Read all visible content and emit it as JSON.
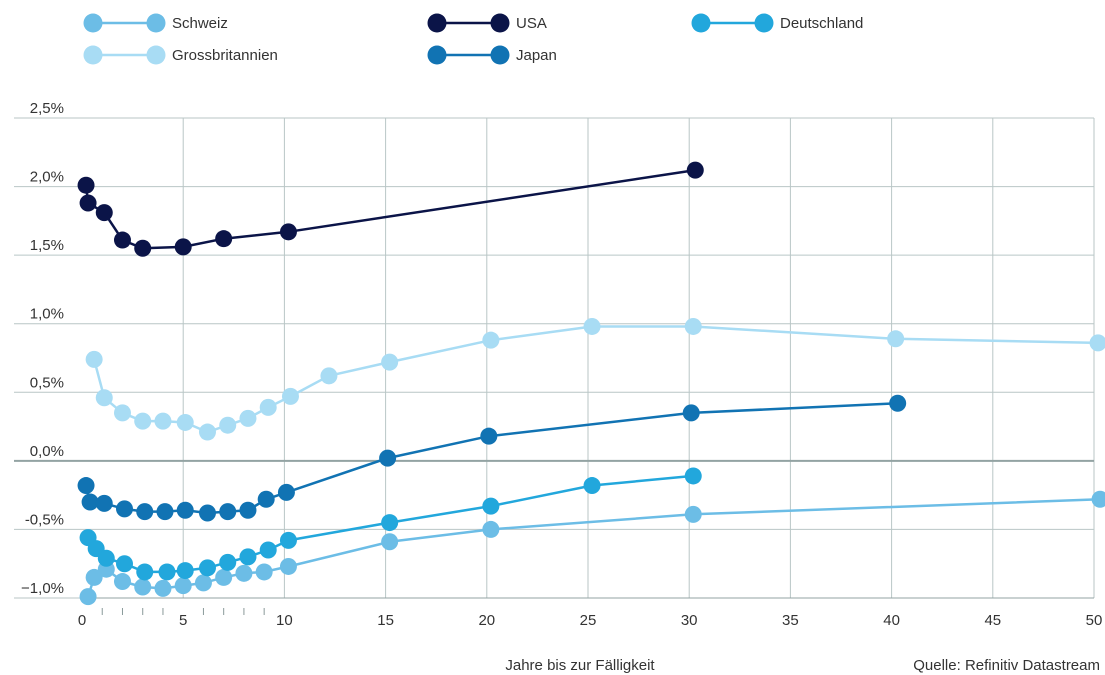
{
  "chart_data": {
    "type": "line",
    "xlabel": "Jahre bis zur Fälligkeit",
    "ylabel": "",
    "source": "Quelle: Refinitiv Datastream",
    "xlim": [
      0,
      50
    ],
    "ylim": [
      -1.0,
      2.5
    ],
    "x_ticks": [
      0,
      5,
      10,
      15,
      20,
      25,
      30,
      35,
      40,
      45,
      50
    ],
    "x_tick_labels": [
      "0",
      "5",
      "10",
      "15",
      "20",
      "25",
      "30",
      "35",
      "40",
      "45",
      "50"
    ],
    "y_ticks": [
      -1.0,
      -0.5,
      0.0,
      0.5,
      1.0,
      1.5,
      2.0,
      2.5
    ],
    "y_tick_labels": [
      "−1,0%",
      "-0,5%",
      "0,0%",
      "0,5%",
      "1,0%",
      "1,5%",
      "2,0%",
      "2,5%"
    ],
    "x_minor_ticks": [
      1,
      2,
      3,
      4,
      6,
      7,
      8,
      9
    ],
    "grid": true,
    "legend_position": "top",
    "series": [
      {
        "name": "Schweiz",
        "color": "#6cbde6",
        "points": [
          [
            0.3,
            -0.99
          ],
          [
            0.6,
            -0.85
          ],
          [
            1.2,
            -0.79
          ],
          [
            2,
            -0.88
          ],
          [
            3,
            -0.92
          ],
          [
            4,
            -0.93
          ],
          [
            5,
            -0.91
          ],
          [
            6,
            -0.89
          ],
          [
            7,
            -0.85
          ],
          [
            8,
            -0.82
          ],
          [
            9,
            -0.81
          ],
          [
            10.2,
            -0.77
          ],
          [
            15.2,
            -0.59
          ],
          [
            20.2,
            -0.5
          ],
          [
            30.2,
            -0.39
          ],
          [
            50.3,
            -0.28
          ]
        ]
      },
      {
        "name": "USA",
        "color": "#0b1448",
        "points": [
          [
            0.2,
            2.01
          ],
          [
            0.3,
            1.88
          ],
          [
            1.1,
            1.81
          ],
          [
            2,
            1.61
          ],
          [
            3,
            1.55
          ],
          [
            5,
            1.56
          ],
          [
            7,
            1.62
          ],
          [
            10.2,
            1.67
          ],
          [
            30.3,
            2.12
          ]
        ]
      },
      {
        "name": "Deutschland",
        "color": "#22a7dc",
        "points": [
          [
            0.3,
            -0.56
          ],
          [
            0.7,
            -0.64
          ],
          [
            1.2,
            -0.71
          ],
          [
            2.1,
            -0.75
          ],
          [
            3.1,
            -0.81
          ],
          [
            4.2,
            -0.81
          ],
          [
            5.1,
            -0.8
          ],
          [
            6.2,
            -0.78
          ],
          [
            7.2,
            -0.74
          ],
          [
            8.2,
            -0.7
          ],
          [
            9.2,
            -0.65
          ],
          [
            10.2,
            -0.58
          ],
          [
            15.2,
            -0.45
          ],
          [
            20.2,
            -0.33
          ],
          [
            25.2,
            -0.18
          ],
          [
            30.2,
            -0.11
          ]
        ]
      },
      {
        "name": "Grossbritannien",
        "color": "#a8dcf4",
        "points": [
          [
            0.6,
            0.74
          ],
          [
            1.1,
            0.46
          ],
          [
            2,
            0.35
          ],
          [
            3,
            0.29
          ],
          [
            4,
            0.29
          ],
          [
            5.1,
            0.28
          ],
          [
            6.2,
            0.21
          ],
          [
            7.2,
            0.26
          ],
          [
            8.2,
            0.31
          ],
          [
            9.2,
            0.39
          ],
          [
            10.3,
            0.47
          ],
          [
            12.2,
            0.62
          ],
          [
            15.2,
            0.72
          ],
          [
            20.2,
            0.88
          ],
          [
            25.2,
            0.98
          ],
          [
            30.2,
            0.98
          ],
          [
            40.2,
            0.89
          ],
          [
            50.2,
            0.86
          ]
        ]
      },
      {
        "name": "Japan",
        "color": "#1173b3",
        "points": [
          [
            0.2,
            -0.18
          ],
          [
            0.4,
            -0.3
          ],
          [
            1.1,
            -0.31
          ],
          [
            2.1,
            -0.35
          ],
          [
            3.1,
            -0.37
          ],
          [
            4.1,
            -0.37
          ],
          [
            5.1,
            -0.36
          ],
          [
            6.2,
            -0.38
          ],
          [
            7.2,
            -0.37
          ],
          [
            8.2,
            -0.36
          ],
          [
            9.1,
            -0.28
          ],
          [
            10.1,
            -0.23
          ],
          [
            15.1,
            0.02
          ],
          [
            20.1,
            0.18
          ],
          [
            30.1,
            0.35
          ],
          [
            40.3,
            0.42
          ]
        ]
      }
    ]
  }
}
